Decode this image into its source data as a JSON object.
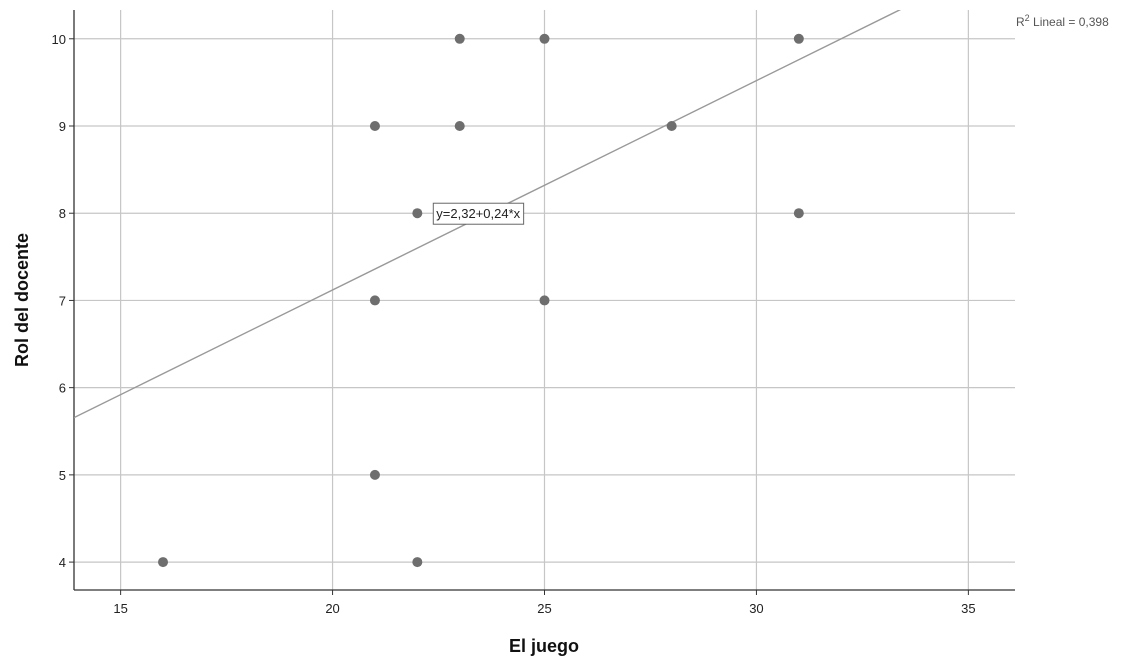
{
  "chart_data": {
    "type": "scatter",
    "xlabel": "El juego",
    "ylabel": "Rol del docente",
    "xlim": [
      13.9,
      36.1
    ],
    "ylim": [
      3.68,
      10.33
    ],
    "x_ticks": [
      15,
      20,
      25,
      30,
      35
    ],
    "y_ticks": [
      4,
      5,
      6,
      7,
      8,
      9,
      10
    ],
    "grid": true,
    "points": [
      {
        "x": 16,
        "y": 4
      },
      {
        "x": 21,
        "y": 5
      },
      {
        "x": 21,
        "y": 7
      },
      {
        "x": 21,
        "y": 9
      },
      {
        "x": 22,
        "y": 4
      },
      {
        "x": 22,
        "y": 8
      },
      {
        "x": 23,
        "y": 9
      },
      {
        "x": 23,
        "y": 10
      },
      {
        "x": 25,
        "y": 7
      },
      {
        "x": 25,
        "y": 10
      },
      {
        "x": 28,
        "y": 9
      },
      {
        "x": 31,
        "y": 8
      },
      {
        "x": 31,
        "y": 10
      }
    ],
    "fit_line": {
      "intercept": 2.32,
      "slope": 0.24,
      "equation_label": "y=2,32+0,24*x",
      "label_at": {
        "x": 22.4,
        "y": 8
      }
    },
    "r2_prefix": "R",
    "r2_sup": "2",
    "r2_suffix": " Lineal = 0,398",
    "colors": {
      "points": "#6e6e6e",
      "fit_line": "#999999",
      "grid": "#c6c6c6",
      "axis": "#333333"
    }
  }
}
